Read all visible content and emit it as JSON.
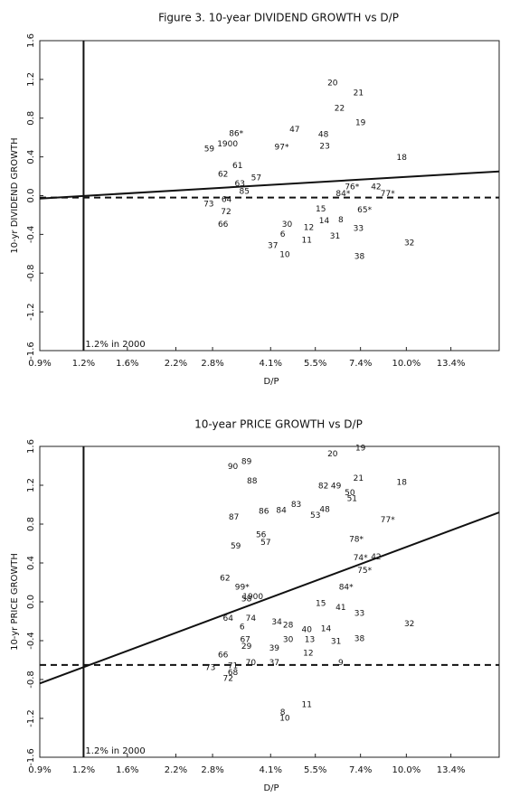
{
  "chart_data": [
    {
      "type": "scatter",
      "title": "Figure 3.  10-year DIVIDEND GROWTH vs D/P",
      "x_label": "D/P",
      "y_label": "10-yr DIVIDEND GROWTH",
      "log_x": true,
      "xlim": [
        0.9,
        18.4
      ],
      "ylim": [
        -1.6,
        1.6
      ],
      "xticks": [
        {
          "value": 0.9,
          "label": "0.9%"
        },
        {
          "value": 1.2,
          "label": "1.2%"
        },
        {
          "value": 1.6,
          "label": "1.6%"
        },
        {
          "value": 2.2,
          "label": "2.2%"
        },
        {
          "value": 2.8,
          "label": "2.8%"
        },
        {
          "value": 4.1,
          "label": "4.1%"
        },
        {
          "value": 5.5,
          "label": "5.5%"
        },
        {
          "value": 7.4,
          "label": "7.4%"
        },
        {
          "value": 10.0,
          "label": "10.0%"
        },
        {
          "value": 13.4,
          "label": "13.4%"
        }
      ],
      "yticks": [
        1.6,
        1.2,
        0.8,
        0.4,
        {
          "value": 0,
          "label": "0.0"
        },
        -0.4,
        -0.8,
        -1.2,
        -1.6
      ],
      "point_labels": [
        "20",
        "21",
        "22",
        "19",
        "18",
        "47",
        "48",
        "86*",
        "1900",
        "59",
        "62",
        "63",
        "73",
        "64",
        "72",
        "66",
        "30",
        "6",
        "37",
        "10",
        "12",
        "11",
        "14",
        "31",
        "8",
        "33",
        "38",
        "32",
        "65*",
        "42",
        "77*",
        "76*",
        "84*",
        "15",
        "23",
        "97*",
        "61",
        "57",
        "85"
      ],
      "x": [
        6.16,
        7.3,
        6.45,
        7.4,
        9.7,
        4.8,
        5.8,
        3.27,
        3.09,
        2.74,
        3.0,
        3.35,
        2.73,
        3.07,
        3.06,
        3.0,
        4.57,
        4.44,
        4.16,
        4.5,
        5.27,
        5.2,
        5.83,
        6.26,
        6.5,
        7.3,
        7.35,
        10.2,
        7.6,
        8.2,
        8.85,
        7.0,
        6.6,
        5.7,
        5.85,
        4.41,
        3.3,
        3.73,
        3.45
      ],
      "values": [
        1.16,
        1.06,
        0.9,
        0.75,
        0.39,
        0.68,
        0.63,
        0.64,
        0.53,
        0.48,
        0.22,
        0.12,
        -0.09,
        -0.04,
        -0.17,
        -0.3,
        -0.3,
        -0.4,
        -0.52,
        -0.61,
        -0.33,
        -0.46,
        -0.26,
        -0.42,
        -0.25,
        -0.34,
        -0.63,
        -0.49,
        -0.15,
        0.09,
        0.02,
        0.09,
        0.02,
        -0.14,
        0.51,
        0.5,
        0.31,
        0.18,
        0.04
      ],
      "lines": [
        {
          "style": "solid",
          "x": [
            0.9,
            18.4
          ],
          "values": [
            -0.03,
            0.25
          ]
        },
        {
          "style": "dashed",
          "x": [
            0.9,
            18.4
          ],
          "values": [
            -0.02,
            -0.02
          ]
        }
      ],
      "vline": 1.2,
      "annotation": "1.2% in 2000"
    },
    {
      "type": "scatter",
      "title": "10-year PRICE GROWTH vs D/P",
      "x_label": "D/P",
      "y_label": "10-yr PRICE GROWTH",
      "log_x": true,
      "xlim": [
        0.9,
        18.4
      ],
      "ylim": [
        -1.6,
        1.6
      ],
      "xticks": [
        {
          "value": 0.9,
          "label": "0.9%"
        },
        {
          "value": 1.2,
          "label": "1.2%"
        },
        {
          "value": 1.6,
          "label": "1.6%"
        },
        {
          "value": 2.2,
          "label": "2.2%"
        },
        {
          "value": 2.8,
          "label": "2.8%"
        },
        {
          "value": 4.1,
          "label": "4.1%"
        },
        {
          "value": 5.5,
          "label": "5.5%"
        },
        {
          "value": 7.4,
          "label": "7.4%"
        },
        {
          "value": 10.0,
          "label": "10.0%"
        },
        {
          "value": 13.4,
          "label": "13.4%"
        }
      ],
      "yticks": [
        1.6,
        1.2,
        0.8,
        0.4,
        {
          "value": 0,
          "label": "0.0"
        },
        -0.4,
        -0.8,
        -1.2,
        -1.6
      ],
      "point_labels": [
        "19",
        "20",
        "89",
        "90",
        "88",
        "21",
        "18",
        "82",
        "49",
        "50",
        "51",
        "83",
        "48",
        "86",
        "84",
        "87",
        "77*",
        "53",
        "56",
        "57",
        "59",
        "78*",
        "62",
        "74*",
        "42",
        "75*",
        "84*",
        "15",
        "41",
        "33",
        "32",
        "64",
        "74",
        "6",
        "34",
        "28",
        "40",
        "14",
        "38",
        "31",
        "30",
        "13",
        "67",
        "29",
        "39",
        "12",
        "66",
        "71",
        "70",
        "37",
        "9",
        "73",
        "68",
        "72",
        "11",
        "8",
        "10",
        "1900",
        "99*",
        "58"
      ],
      "x": [
        7.4,
        6.16,
        3.5,
        3.2,
        3.63,
        7.3,
        9.7,
        5.8,
        6.3,
        6.9,
        7.0,
        4.85,
        5.85,
        3.92,
        4.4,
        3.22,
        8.85,
        5.5,
        3.85,
        3.97,
        3.26,
        7.2,
        3.04,
        7.4,
        8.2,
        7.6,
        6.73,
        5.7,
        6.5,
        7.35,
        10.2,
        3.1,
        3.6,
        3.4,
        4.27,
        4.6,
        5.2,
        5.9,
        7.35,
        6.3,
        4.6,
        5.3,
        3.47,
        3.5,
        4.2,
        5.25,
        3.0,
        3.2,
        3.6,
        4.2,
        6.5,
        2.76,
        3.2,
        3.1,
        5.2,
        4.44,
        4.5,
        3.65,
        3.4,
        3.5
      ],
      "values": [
        1.58,
        1.52,
        1.44,
        1.39,
        1.24,
        1.27,
        1.23,
        1.19,
        1.19,
        1.12,
        1.06,
        1.0,
        0.95,
        0.93,
        0.94,
        0.87,
        0.84,
        0.89,
        0.69,
        0.61,
        0.57,
        0.64,
        0.24,
        0.45,
        0.46,
        0.32,
        0.15,
        -0.02,
        -0.06,
        -0.12,
        -0.23,
        -0.17,
        -0.17,
        -0.26,
        -0.21,
        -0.24,
        -0.29,
        -0.28,
        -0.38,
        -0.41,
        -0.39,
        -0.39,
        -0.39,
        -0.46,
        -0.48,
        -0.53,
        -0.55,
        -0.66,
        -0.63,
        -0.63,
        -0.63,
        -0.68,
        -0.73,
        -0.79,
        -1.06,
        -1.14,
        -1.2,
        0.05,
        0.15,
        0.03
      ],
      "lines": [
        {
          "style": "solid",
          "x": [
            0.9,
            18.4
          ],
          "values": [
            -0.84,
            0.92
          ]
        },
        {
          "style": "dashed",
          "x": [
            0.9,
            18.4
          ],
          "values": [
            -0.65,
            -0.65
          ]
        }
      ],
      "vline": 1.2,
      "annotation": "1.2% in 2000"
    }
  ]
}
